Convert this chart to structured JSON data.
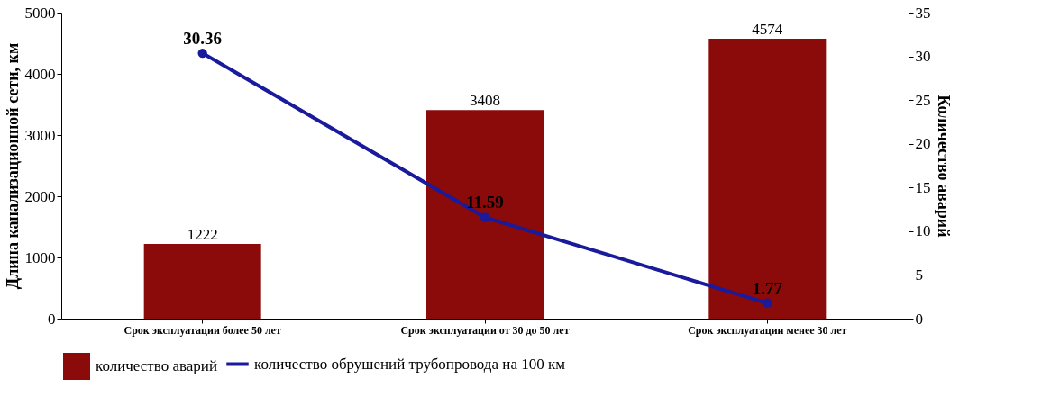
{
  "chart_data": {
    "type": "bar",
    "ylabel": "Длина канализационной сети, км",
    "y2label": "Количество аварий",
    "categories": [
      "Срок эксплуатации более 50 лет",
      "Срок эксплуатации от 30 до 50 лет",
      "Срок эксплуатации менее 30 лет"
    ],
    "series": [
      {
        "name": "количество аварий",
        "color": "#8b0a0a",
        "values": [
          1222,
          3408,
          4574
        ]
      },
      {
        "name": "количество обрушений трубопровода на 100 км",
        "type": "line",
        "axis": "y2",
        "color": "#1a1a9c",
        "values": [
          30.36,
          11.59,
          1.77
        ]
      }
    ],
    "ylim": [
      0,
      5000
    ],
    "yticks": [
      0,
      1000,
      2000,
      3000,
      4000,
      5000
    ],
    "y2lim": [
      0,
      35
    ],
    "y2ticks": [
      0,
      5,
      10,
      15,
      20,
      25,
      30,
      35
    ],
    "data_labels": true,
    "grid": false,
    "legend": "bottom",
    "marker": "circle"
  }
}
